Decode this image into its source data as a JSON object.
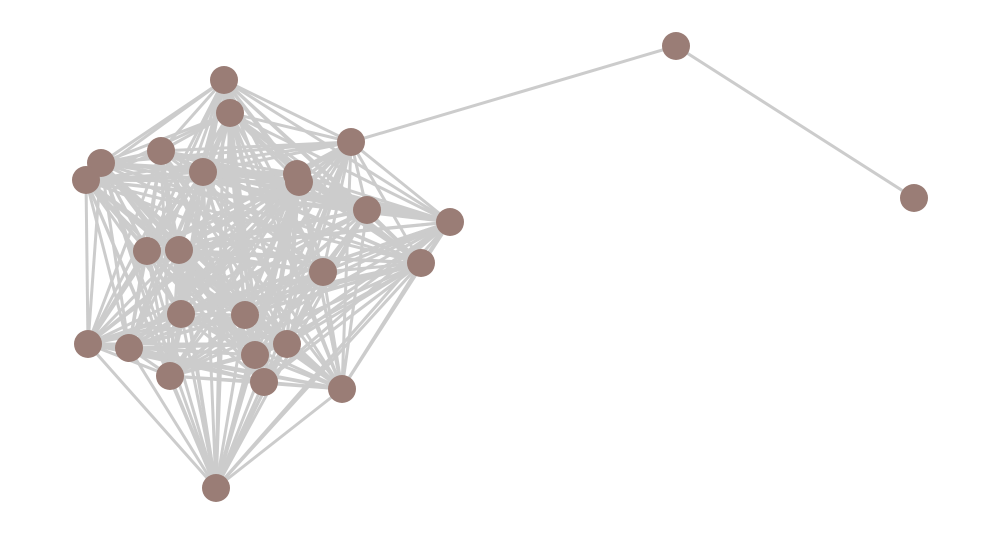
{
  "graph": {
    "node_color": "#9a7d76",
    "edge_color": "#cccccc",
    "node_ids": [
      0,
      1,
      2,
      3,
      4,
      5,
      6,
      7,
      8,
      9,
      10,
      11,
      12,
      13,
      14,
      15,
      16,
      17,
      18,
      19,
      20,
      21,
      22,
      23,
      24,
      25,
      26
    ],
    "edges": [
      [
        0,
        1
      ],
      [
        0,
        2
      ]
    ],
    "fully_connected_groups": [
      [
        2,
        3,
        4,
        5,
        6,
        7,
        8,
        9,
        10,
        11,
        12,
        13,
        14,
        15,
        16,
        17,
        18,
        19,
        20,
        21,
        22,
        23,
        24,
        25,
        26
      ]
    ]
  }
}
